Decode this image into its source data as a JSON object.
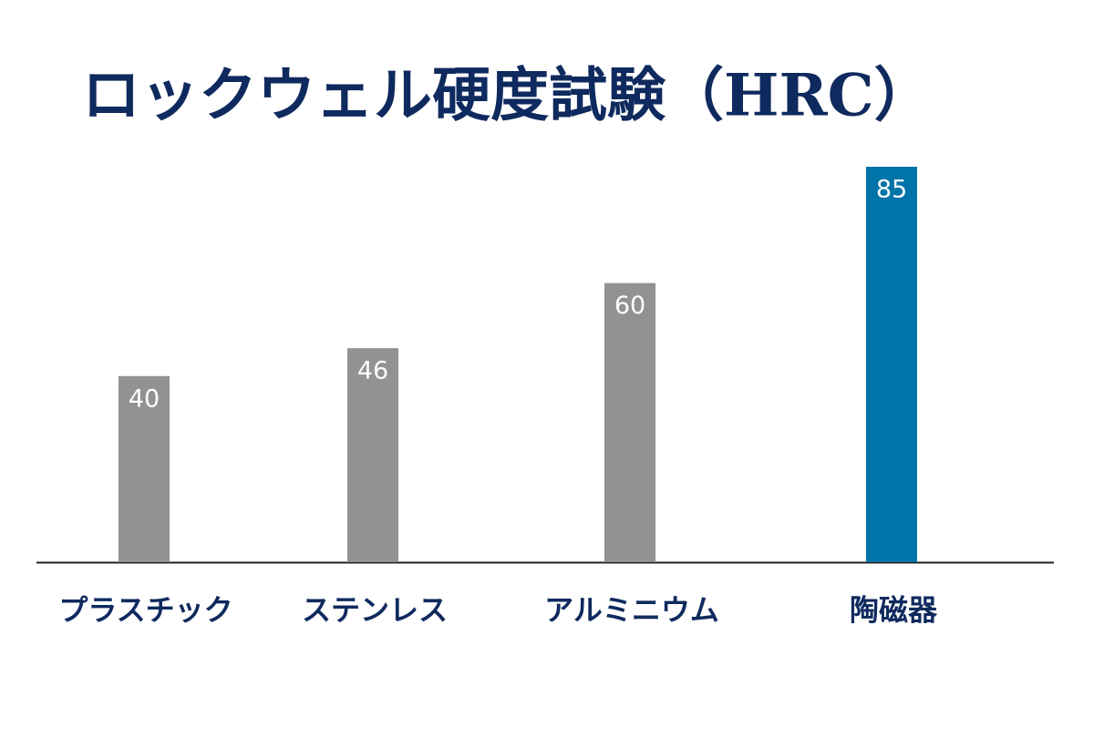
{
  "chart_data": {
    "type": "bar",
    "title": "ロックウェル硬度試験（HRC）",
    "categories": [
      "プラスチック",
      "ステンレス",
      "アルミニウム",
      "陶磁器"
    ],
    "values": [
      40,
      46,
      60,
      85
    ],
    "colors": [
      "#929292",
      "#929292",
      "#929292",
      "#0073a8"
    ],
    "ylim": [
      0,
      90
    ]
  }
}
